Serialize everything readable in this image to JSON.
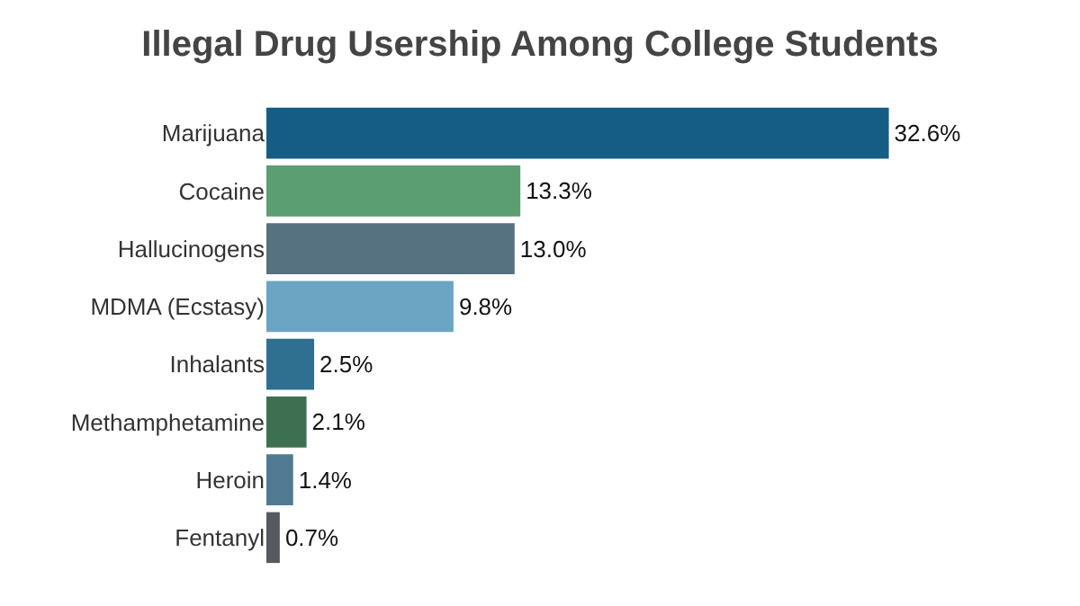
{
  "chart_data": {
    "type": "bar",
    "orientation": "horizontal",
    "title": "Illegal Drug Usership Among College Students",
    "categories": [
      "Marijuana",
      "Cocaine",
      "Hallucinogens",
      "MDMA (Ecstasy)",
      "Inhalants",
      "Methamphetamine",
      "Heroin",
      "Fentanyl"
    ],
    "values": [
      32.6,
      13.3,
      13.0,
      9.8,
      2.5,
      2.1,
      1.4,
      0.7
    ],
    "value_labels": [
      "32.6%",
      "13.3%",
      "13.0%",
      "9.8%",
      "2.5%",
      "2.1%",
      "1.4%",
      "0.7%"
    ],
    "colors": [
      "#165d85",
      "#5a9e72",
      "#56717f",
      "#6aa5c3",
      "#2f6f8f",
      "#3d7050",
      "#507b93",
      "#555a5f"
    ]
  }
}
